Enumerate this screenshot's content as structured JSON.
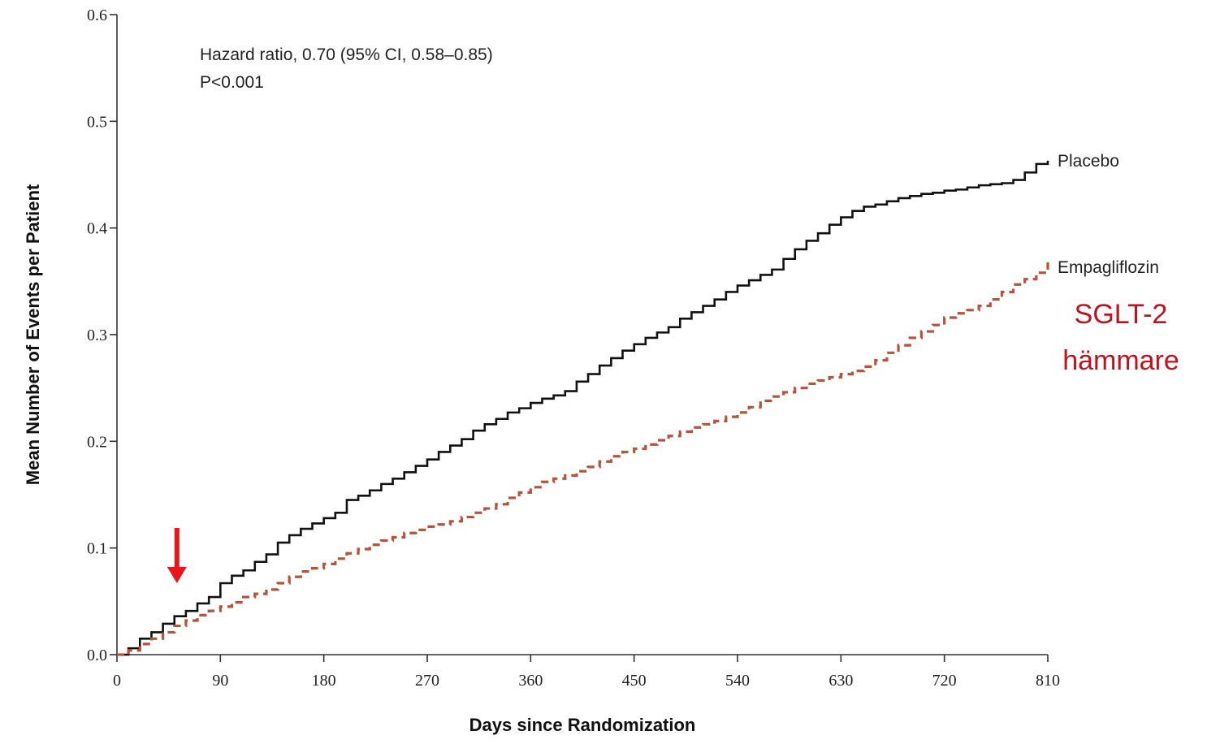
{
  "chart_data": {
    "type": "line",
    "title": "",
    "xlabel": "Days since Randomization",
    "ylabel": "Mean Number of Events per Patient",
    "xlim": [
      0,
      810
    ],
    "ylim": [
      0,
      0.6
    ],
    "x_ticks": [
      0,
      90,
      180,
      270,
      360,
      450,
      540,
      630,
      720,
      810
    ],
    "x_tick_labels": [
      "0",
      "90",
      "180",
      "270",
      "360",
      "450",
      "540",
      "630",
      "720",
      "810"
    ],
    "y_ticks": [
      0.0,
      0.1,
      0.2,
      0.3,
      0.4,
      0.5,
      0.6
    ],
    "y_tick_labels": [
      "0.0",
      "0.1",
      "0.2",
      "0.3",
      "0.4",
      "0.5",
      "0.6"
    ],
    "grid": false,
    "legend": "inline labels at right end of lines",
    "annotations": {
      "hazard_ratio": "Hazard ratio, 0.70 (95% CI, 0.58–0.85)",
      "p_value": "P<0.001"
    },
    "series": [
      {
        "name": "Placebo",
        "color": "#111111",
        "style": "solid-step",
        "x": [
          0,
          10,
          20,
          30,
          40,
          50,
          60,
          70,
          80,
          90,
          100,
          110,
          120,
          130,
          140,
          150,
          160,
          170,
          180,
          190,
          200,
          210,
          220,
          230,
          240,
          250,
          260,
          270,
          280,
          290,
          300,
          310,
          320,
          330,
          340,
          350,
          360,
          370,
          380,
          390,
          400,
          410,
          420,
          430,
          440,
          450,
          460,
          470,
          480,
          490,
          500,
          510,
          520,
          530,
          540,
          550,
          560,
          570,
          580,
          590,
          600,
          610,
          620,
          630,
          640,
          650,
          660,
          670,
          680,
          690,
          700,
          710,
          720,
          730,
          740,
          750,
          760,
          770,
          780,
          790,
          800,
          810
        ],
        "values": [
          0.0,
          0.006,
          0.015,
          0.021,
          0.029,
          0.036,
          0.041,
          0.048,
          0.054,
          0.067,
          0.074,
          0.079,
          0.087,
          0.094,
          0.105,
          0.112,
          0.118,
          0.123,
          0.128,
          0.133,
          0.145,
          0.149,
          0.154,
          0.16,
          0.165,
          0.171,
          0.177,
          0.183,
          0.19,
          0.196,
          0.202,
          0.21,
          0.216,
          0.221,
          0.227,
          0.231,
          0.236,
          0.24,
          0.243,
          0.247,
          0.256,
          0.263,
          0.271,
          0.278,
          0.285,
          0.291,
          0.297,
          0.302,
          0.307,
          0.315,
          0.321,
          0.327,
          0.333,
          0.34,
          0.346,
          0.351,
          0.356,
          0.361,
          0.371,
          0.38,
          0.388,
          0.395,
          0.403,
          0.41,
          0.416,
          0.42,
          0.422,
          0.425,
          0.428,
          0.43,
          0.432,
          0.433,
          0.435,
          0.436,
          0.438,
          0.44,
          0.441,
          0.442,
          0.445,
          0.452,
          0.46,
          0.463
        ]
      },
      {
        "name": "Empagliflozin",
        "color": "#b5533c",
        "style": "dashed-step",
        "x": [
          0,
          10,
          20,
          30,
          40,
          50,
          60,
          70,
          80,
          90,
          100,
          110,
          120,
          130,
          140,
          150,
          160,
          170,
          180,
          190,
          200,
          210,
          220,
          230,
          240,
          250,
          260,
          270,
          280,
          290,
          300,
          310,
          320,
          330,
          340,
          350,
          360,
          370,
          380,
          390,
          400,
          410,
          420,
          430,
          440,
          450,
          460,
          470,
          480,
          490,
          500,
          510,
          520,
          530,
          540,
          550,
          560,
          570,
          580,
          590,
          600,
          610,
          620,
          630,
          640,
          650,
          660,
          670,
          680,
          690,
          700,
          710,
          720,
          730,
          740,
          750,
          760,
          770,
          780,
          790,
          800,
          810
        ],
        "values": [
          0.0,
          0.004,
          0.01,
          0.015,
          0.021,
          0.027,
          0.032,
          0.037,
          0.041,
          0.045,
          0.049,
          0.054,
          0.057,
          0.061,
          0.067,
          0.073,
          0.078,
          0.081,
          0.085,
          0.09,
          0.095,
          0.099,
          0.103,
          0.107,
          0.11,
          0.114,
          0.117,
          0.12,
          0.122,
          0.125,
          0.129,
          0.133,
          0.137,
          0.141,
          0.147,
          0.152,
          0.157,
          0.162,
          0.165,
          0.168,
          0.172,
          0.176,
          0.181,
          0.186,
          0.19,
          0.193,
          0.197,
          0.201,
          0.205,
          0.209,
          0.213,
          0.216,
          0.219,
          0.223,
          0.227,
          0.232,
          0.238,
          0.242,
          0.246,
          0.25,
          0.254,
          0.257,
          0.26,
          0.263,
          0.266,
          0.27,
          0.276,
          0.283,
          0.29,
          0.297,
          0.303,
          0.309,
          0.316,
          0.32,
          0.323,
          0.327,
          0.333,
          0.34,
          0.347,
          0.352,
          0.358,
          0.368
        ]
      }
    ]
  },
  "overlay": {
    "label_line1": "SGLT-2",
    "label_line2": "hämmare",
    "label_color": "#c0121c",
    "arrow_color": "#e8151b",
    "arrow_pointing_to_day": 55
  }
}
